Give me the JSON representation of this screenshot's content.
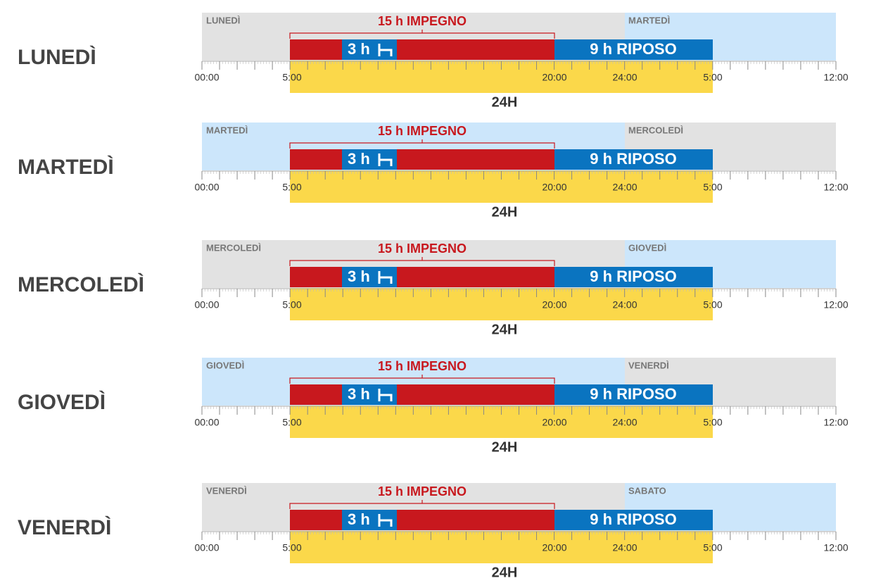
{
  "rows": [
    {
      "day": "LUNEDÌ",
      "left_label": "LUNEDÌ",
      "right_label": "MARTEDÌ",
      "work": "15 h IMPEGNO",
      "break": "3 h",
      "rest": "9 h RIPOSO",
      "times": [
        "00:00",
        "5:00",
        "20:00",
        "24:00",
        "5:00",
        "12:00"
      ],
      "total": "24H"
    },
    {
      "day": "MARTEDÌ",
      "left_label": "MARTEDÌ",
      "right_label": "MERCOLEDÌ",
      "work": "15 h IMPEGNO",
      "break": "3 h",
      "rest": "9 h RIPOSO",
      "times": [
        "00:00",
        "5:00",
        "20:00",
        "24:00",
        "5:00",
        "12:00"
      ],
      "total": "24H"
    },
    {
      "day": "MERCOLEDÌ",
      "left_label": "MERCOLEDÌ",
      "right_label": "GIOVEDÌ",
      "work": "15 h IMPEGNO",
      "break": "3 h",
      "rest": "9 h RIPOSO",
      "times": [
        "00:00",
        "5:00",
        "20:00",
        "24:00",
        "5:00",
        "12:00"
      ],
      "total": "24H"
    },
    {
      "day": "GIOVEDÌ",
      "left_label": "GIOVEDÌ",
      "right_label": "VENERDÌ",
      "work": "15 h IMPEGNO",
      "break": "3 h",
      "rest": "9 h RIPOSO",
      "times": [
        "00:00",
        "5:00",
        "20:00",
        "24:00",
        "5:00",
        "12:00"
      ],
      "total": "24H"
    },
    {
      "day": "VENERDÌ",
      "left_label": "VENERDÌ",
      "right_label": "SABATO",
      "work": "15 h IMPEGNO",
      "break": "3 h",
      "rest": "9 h RIPOSO",
      "times": [
        "00:00",
        "5:00",
        "20:00",
        "24:00",
        "5:00",
        "12:00"
      ],
      "total": "24H"
    }
  ]
}
